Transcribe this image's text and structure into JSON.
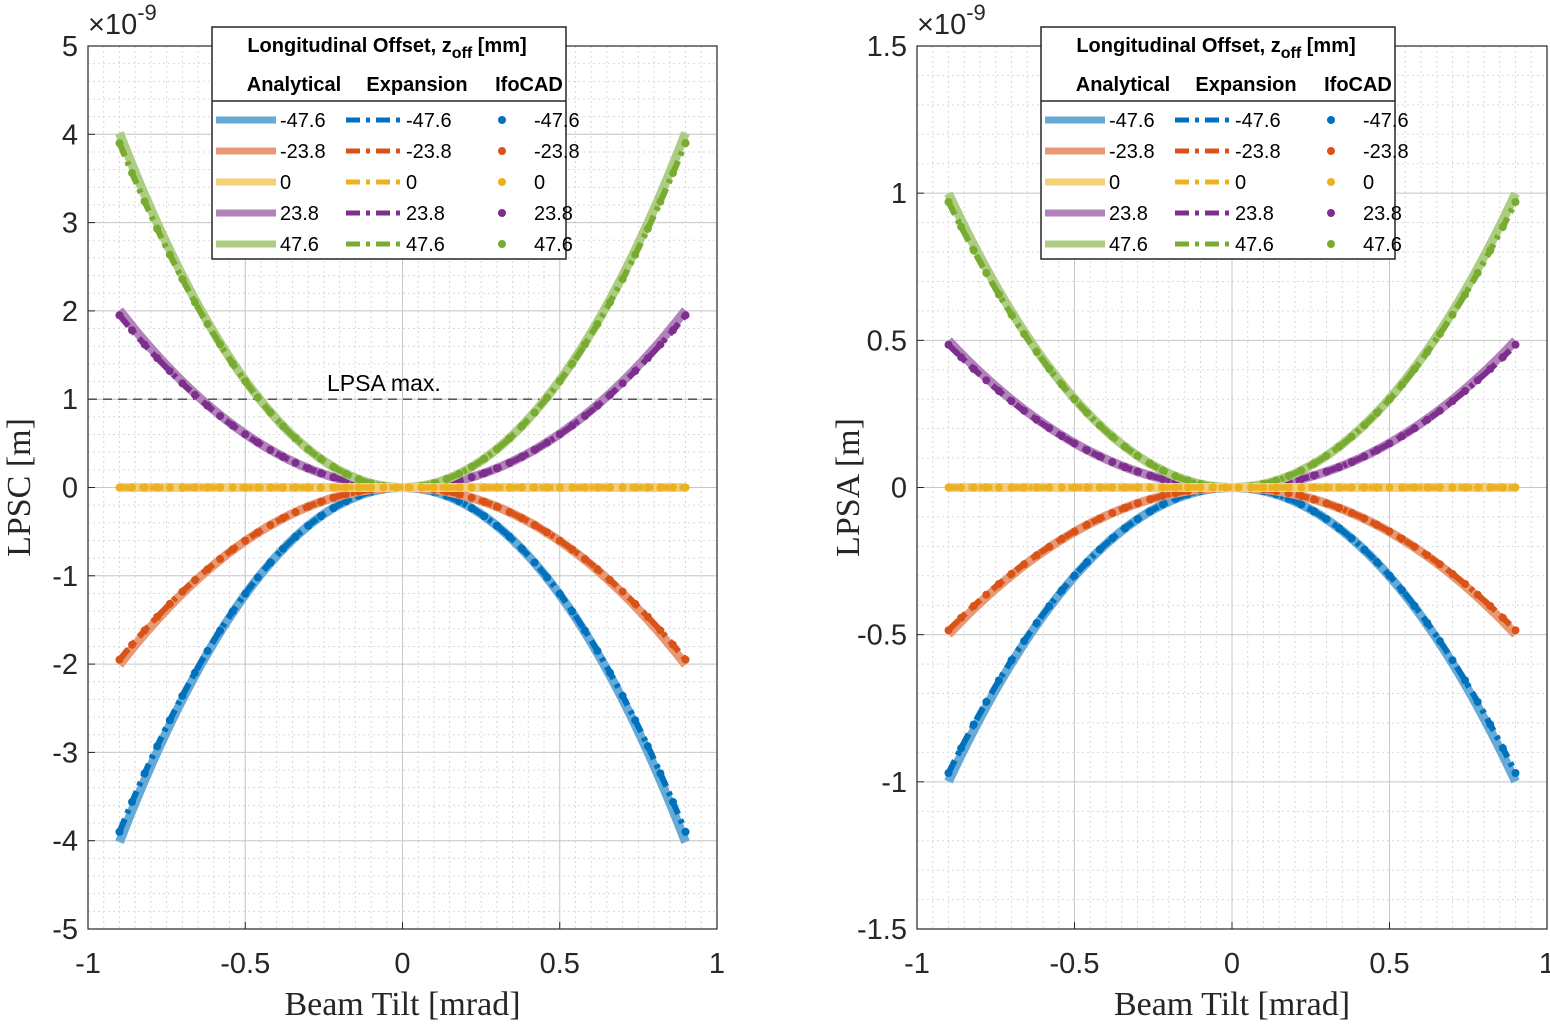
{
  "chart_data": [
    {
      "type": "line",
      "xlabel": "Beam Tilt [mrad]",
      "ylabel": "LPSC [m]",
      "xlim": [
        -1,
        1
      ],
      "ylim": [
        -5,
        5
      ],
      "y_exponent_label": "×10",
      "y_exponent_power": "-9",
      "xticks": [
        "-1",
        "-0.5",
        "0",
        "0.5",
        "1"
      ],
      "yticks": [
        "-5",
        "-4",
        "-3",
        "-2",
        "-1",
        "0",
        "1",
        "2",
        "3",
        "4",
        "5"
      ],
      "grid": true,
      "legend_placement": "top-center",
      "legend_title": "Longitudinal Offset, z",
      "legend_title_sub": "off",
      "legend_title_unit": " [mm]",
      "legend_columns": [
        "Analytical",
        "Expansion",
        "IfoCAD"
      ],
      "series_labels": [
        "-47.6",
        "-23.8",
        "0",
        "23.8",
        "47.6"
      ],
      "series_colors": [
        "#0072BD",
        "#D95319",
        "#EDB120",
        "#7E2F8E",
        "#77AC30"
      ],
      "x_range": [
        -0.9,
        0.9
      ],
      "y_at_edge": [
        -3.9,
        -1.95,
        0,
        1.95,
        3.9
      ],
      "curve_shape": "y = A*(x/0.9)^2, odd exponent sign per offset; near-quadratic symmetric parabolas",
      "annotation": {
        "text": "LPSA max.",
        "y": 1
      }
    },
    {
      "type": "line",
      "xlabel": "Beam Tilt [mrad]",
      "ylabel": "LPSA [m]",
      "xlim": [
        -1,
        1
      ],
      "ylim": [
        -1.5,
        1.5
      ],
      "y_exponent_label": "×10",
      "y_exponent_power": "-9",
      "xticks": [
        "-1",
        "-0.5",
        "0",
        "0.5",
        "1"
      ],
      "yticks": [
        "-1.5",
        "-1",
        "-0.5",
        "0",
        "0.5",
        "1",
        "1.5"
      ],
      "grid": true,
      "legend_placement": "top-center",
      "legend_title": "Longitudinal Offset, z",
      "legend_title_sub": "off",
      "legend_title_unit": " [mm]",
      "legend_columns": [
        "Analytical",
        "Expansion",
        "IfoCAD"
      ],
      "series_labels": [
        "-47.6",
        "-23.8",
        "0",
        "23.8",
        "47.6"
      ],
      "series_colors": [
        "#0072BD",
        "#D95319",
        "#EDB120",
        "#7E2F8E",
        "#77AC30"
      ],
      "x_range": [
        -0.9,
        0.9
      ],
      "y_at_edge": [
        -0.97,
        -0.485,
        0,
        0.485,
        0.97
      ]
    }
  ]
}
